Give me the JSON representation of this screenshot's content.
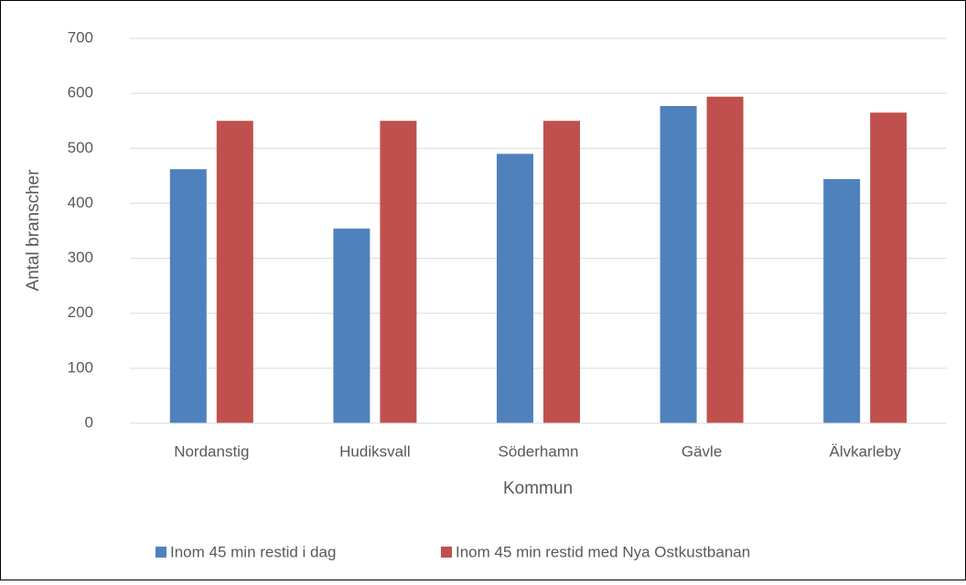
{
  "chart_data": {
    "type": "bar",
    "xlabel": "Kommun",
    "ylabel": "Antal branscher",
    "categories": [
      "Nordanstig",
      "Hudiksvall",
      "Söderhamn",
      "Gävle",
      "Älvkarleby"
    ],
    "series": [
      {
        "name": "Inom 45 min restid i dag",
        "color": "#4f81bd",
        "values": [
          462,
          354,
          490,
          577,
          444
        ]
      },
      {
        "name": "Inom 45 min restid med Nya Ostkustbanan",
        "color": "#c0504d",
        "values": [
          550,
          550,
          550,
          594,
          565
        ]
      }
    ],
    "ylim": [
      0,
      700
    ],
    "yticks": [
      0,
      100,
      200,
      300,
      400,
      500,
      600,
      700
    ],
    "grid": true,
    "legend": "bottom"
  }
}
